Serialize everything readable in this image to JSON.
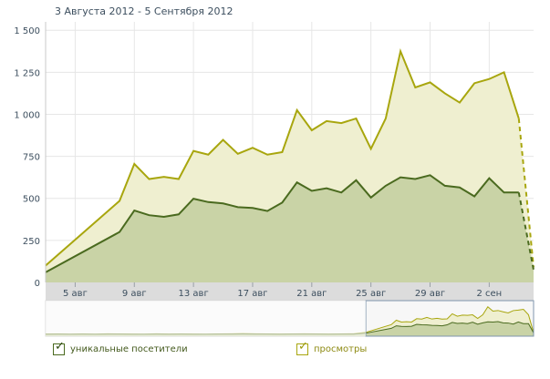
{
  "header": {
    "date_range": "3 Августа 2012 - 5 Сентября 2012"
  },
  "colors": {
    "views_line": "#a8a60e",
    "views_fill": "#efefd0",
    "visitors_line": "#4a6a1f",
    "visitors_fill": "#c9d3a6",
    "grid": "#e6e6e6",
    "axis_band": "#dcdcdc"
  },
  "chart_data": {
    "type": "area",
    "x": [
      "3 авг",
      "8 авг",
      "9 авг",
      "10 авг",
      "11 авг",
      "12 авг",
      "13 авг",
      "14 авг",
      "15 авг",
      "16 авг",
      "17 авг",
      "18 авг",
      "19 авг",
      "20 авг",
      "21 авг",
      "22 авг",
      "23 авг",
      "24 авг",
      "25 авг",
      "26 авг",
      "27 авг",
      "28 авг",
      "29 авг",
      "30 авг",
      "31 авг",
      "1 сен",
      "2 сен",
      "3 сен",
      "4 сен",
      "5 сен"
    ],
    "series": [
      {
        "name": "просмотры",
        "values": [
          100,
          485,
          705,
          615,
          628,
          615,
          782,
          760,
          848,
          765,
          801,
          760,
          775,
          1025,
          905,
          960,
          948,
          975,
          795,
          975,
          1375,
          1160,
          1190,
          1125,
          1070,
          1185,
          1210,
          1250,
          975,
          90
        ]
      },
      {
        "name": "уникальные посетители",
        "values": [
          60,
          300,
          428,
          400,
          390,
          405,
          498,
          478,
          470,
          448,
          443,
          425,
          475,
          595,
          545,
          560,
          535,
          608,
          505,
          575,
          625,
          615,
          638,
          575,
          565,
          512,
          620,
          535,
          535,
          75
        ]
      }
    ],
    "partial_last_point": true,
    "y_ticks": [
      "0",
      "250",
      "500",
      "750",
      "1 000",
      "1 250",
      "1 500"
    ],
    "y_tick_values": [
      0,
      250,
      500,
      750,
      1000,
      1250,
      1500
    ],
    "x_tick_labels": [
      "5 авг",
      "9 авг",
      "13 авг",
      "17 авг",
      "21 авг",
      "25 авг",
      "29 авг",
      "2 сен"
    ],
    "ylim": [
      0,
      1550
    ],
    "grid": true,
    "navigator": true,
    "legend_position": "bottom-left"
  },
  "legend": {
    "visitors_label": "уникальные посетители",
    "views_label": "просмотры",
    "checkmark": "✓"
  }
}
